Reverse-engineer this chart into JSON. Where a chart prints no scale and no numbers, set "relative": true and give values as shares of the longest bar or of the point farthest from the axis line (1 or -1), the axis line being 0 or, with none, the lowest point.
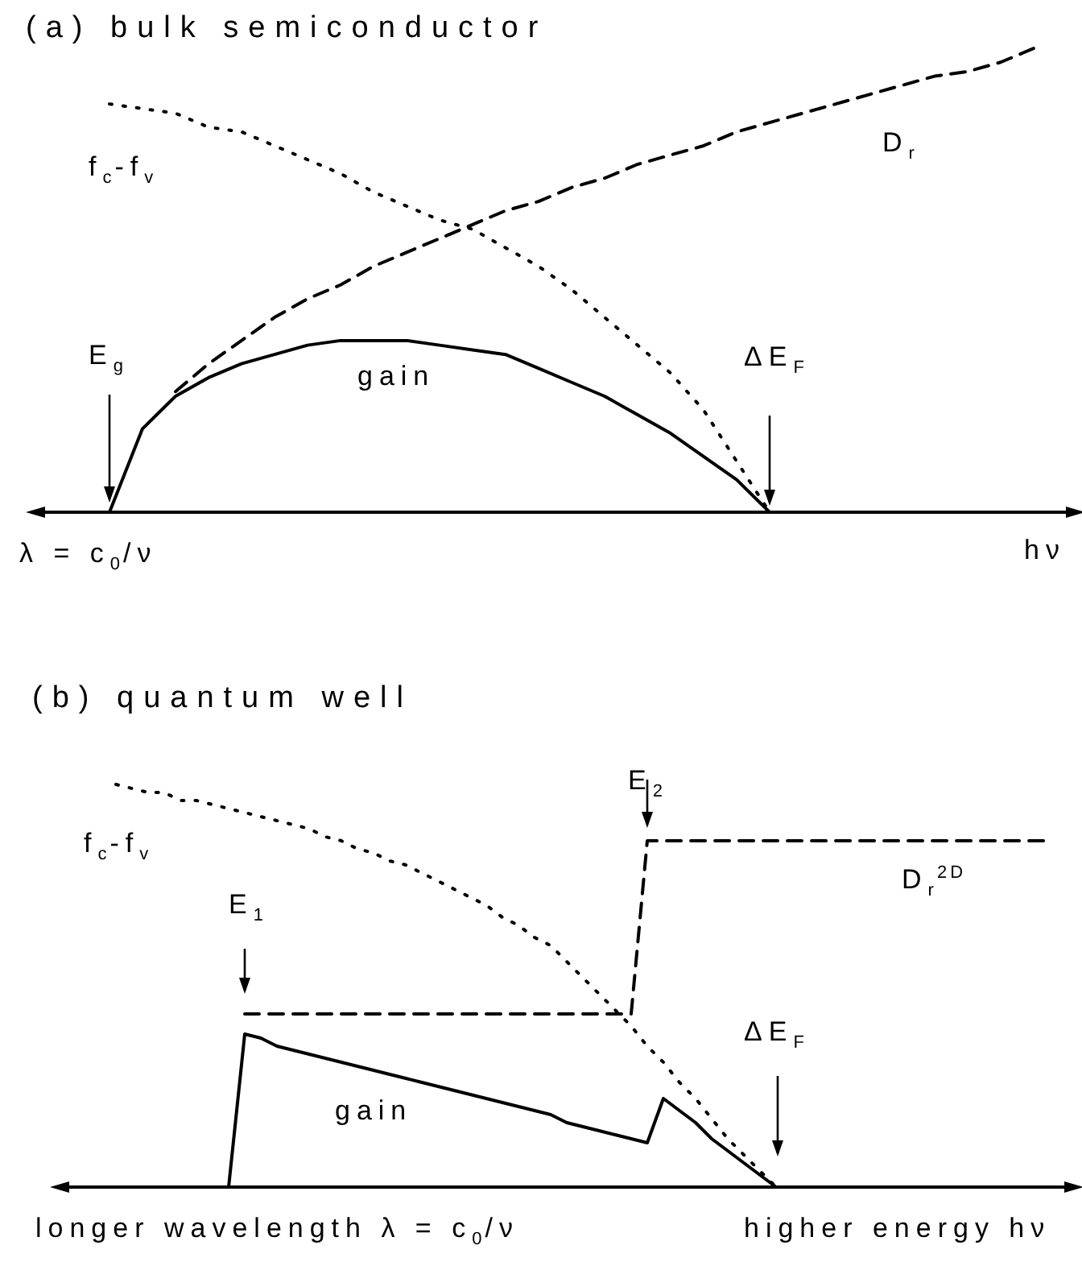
{
  "chart_data": [
    {
      "type": "line",
      "title": "(a) bulk semiconductor",
      "xlabel": "hν",
      "relative": true,
      "tick_labels": false,
      "marker": "none",
      "annotations": [
        "E$_{g}$",
        "ΔE$_{F}$",
        "λ = c$_{0}$/ν"
      ],
      "categories": [
        null,
        null,
        null,
        null,
        null,
        null,
        null,
        null,
        null,
        null,
        null,
        null,
        null,
        null,
        null,
        null,
        null,
        null,
        null,
        null,
        null,
        null,
        null,
        null,
        null,
        null,
        null,
        null,
        null,
        null,
        null,
        null
      ],
      "series": [
        {
          "name": "f$_{c}$-f$_{v}$",
          "color": "#000000",
          "line_style": "dotted",
          "values": [
            null,
            null,
            0.88,
            0.87,
            0.86,
            0.83,
            0.82,
            0.79,
            0.76,
            0.73,
            0.69,
            0.66,
            0.63,
            0.61,
            0.57,
            0.53,
            0.48,
            0.42,
            0.36,
            0.3,
            0.22,
            0.11,
            0,
            null,
            null,
            null,
            null,
            null,
            null,
            null,
            null,
            null
          ]
        },
        {
          "name": "D$_{r}$",
          "color": "#000000",
          "line_style": "dashed",
          "values": [
            null,
            null,
            null,
            null,
            0.26,
            0.32,
            0.37,
            0.42,
            0.46,
            0.49,
            0.53,
            0.56,
            0.59,
            0.62,
            0.65,
            0.67,
            0.7,
            0.72,
            0.75,
            0.77,
            0.79,
            0.82,
            0.84,
            0.86,
            0.88,
            0.9,
            0.92,
            0.94,
            0.95,
            0.97,
            1.0,
            null
          ]
        },
        {
          "name": "gain",
          "color": "#000000",
          "line_style": "solid",
          "values": [
            null,
            null,
            0,
            0.18,
            0.25,
            0.29,
            0.32,
            0.34,
            0.36,
            0.37,
            0.37,
            0.37,
            0.36,
            0.35,
            0.34,
            0.31,
            0.28,
            0.25,
            0.21,
            0.17,
            0.12,
            0.07,
            0,
            null,
            null,
            null,
            null,
            null,
            null,
            null,
            null,
            null
          ]
        }
      ]
    },
    {
      "type": "line",
      "title": "(b) quantum well",
      "xlabel": "higher energy hν",
      "relative": true,
      "tick_labels": false,
      "marker": "none",
      "annotations": [
        "E$_{1}$",
        "E$_{2}$",
        "ΔE$_{F}$",
        "longer wavelength λ = c$_{0}$/ν"
      ],
      "categories": [
        null,
        null,
        null,
        null,
        null,
        null,
        null,
        null,
        null,
        null,
        null,
        null,
        null,
        null,
        null,
        null,
        null,
        null,
        null,
        null,
        null,
        null,
        null,
        null,
        null,
        null,
        null,
        null,
        null,
        null,
        null,
        null,
        null,
        null,
        null,
        null,
        null,
        null,
        null,
        null,
        null,
        null,
        null,
        null,
        null,
        null,
        null,
        null,
        null,
        null,
        null,
        null,
        null,
        null,
        null,
        null,
        null,
        null,
        null,
        null,
        null,
        null,
        null
      ],
      "series": [
        {
          "name": "f$_{c}$-f$_{v}$",
          "color": "#000000",
          "line_style": "dotted",
          "values": [
            null,
            null,
            null,
            1.0,
            0.99,
            0.98,
            0.98,
            0.96,
            0.96,
            0.95,
            0.94,
            0.93,
            0.92,
            0.91,
            0.9,
            0.89,
            0.87,
            0.86,
            0.84,
            0.83,
            0.81,
            0.8,
            0.78,
            0.76,
            0.74,
            0.72,
            0.7,
            0.67,
            0.65,
            0.62,
            0.6,
            0.56,
            0.52,
            0.48,
            0.44,
            0.4,
            0.35,
            0.31,
            0.26,
            0.22,
            0.17,
            0.12,
            0.08,
            0.04,
            0,
            null,
            null,
            null,
            null,
            null,
            null,
            null,
            null,
            null,
            null,
            null,
            null,
            null,
            null,
            null,
            null,
            null,
            null
          ]
        },
        {
          "name": "D$_{r}$$^{2D}$",
          "color": "#000000",
          "line_style": "dashed",
          "values": [
            null,
            null,
            null,
            null,
            null,
            null,
            null,
            null,
            null,
            null,
            null,
            0.43,
            0.43,
            0.43,
            0.43,
            0.43,
            0.43,
            0.43,
            0.43,
            0.43,
            0.43,
            0.43,
            0.43,
            0.43,
            0.43,
            0.43,
            0.43,
            0.43,
            0.43,
            0.43,
            0.43,
            0.43,
            0.43,
            0.43,
            0.43,
            0.43,
            0.86,
            0.86,
            0.86,
            0.86,
            0.86,
            0.86,
            0.86,
            0.86,
            0.86,
            0.86,
            0.86,
            0.86,
            0.86,
            0.86,
            0.86,
            0.86,
            0.86,
            0.86,
            0.86,
            0.86,
            0.86,
            0.86,
            0.86,
            0.86,
            0.86,
            0.86,
            null
          ]
        },
        {
          "name": "gain",
          "color": "#000000",
          "line_style": "solid",
          "values": [
            null,
            null,
            null,
            null,
            null,
            null,
            null,
            null,
            null,
            null,
            0,
            0.38,
            0.37,
            0.35,
            0.34,
            0.33,
            0.32,
            0.31,
            0.3,
            0.29,
            0.28,
            0.27,
            0.26,
            0.25,
            0.24,
            0.23,
            0.22,
            0.21,
            0.2,
            0.19,
            0.18,
            0.16,
            0.15,
            0.14,
            0.13,
            0.12,
            0.11,
            0.22,
            0.19,
            0.16,
            0.12,
            0.09,
            0.06,
            0.03,
            0,
            null,
            null,
            null,
            null,
            null,
            null,
            null,
            null,
            null,
            null,
            null,
            null,
            null,
            null,
            null,
            null,
            null,
            null
          ]
        }
      ]
    }
  ]
}
